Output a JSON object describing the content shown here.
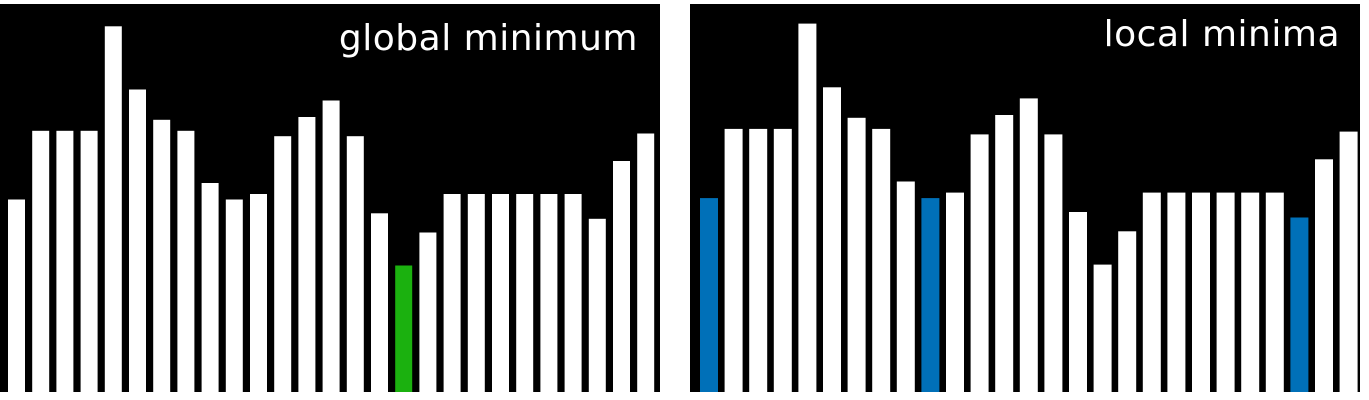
{
  "chart_data": [
    {
      "type": "bar",
      "title": "global minimum",
      "values": [
        7.0,
        9.5,
        9.5,
        9.5,
        13.3,
        11.0,
        9.9,
        9.5,
        7.6,
        7.0,
        7.2,
        9.3,
        10.0,
        10.6,
        9.3,
        6.5,
        4.6,
        5.8,
        7.2,
        7.2,
        7.2,
        7.2,
        7.2,
        7.2,
        6.3,
        8.4,
        9.4
      ],
      "ylim": [
        0,
        14
      ],
      "grid": false,
      "highlight": [
        {
          "index": 16,
          "color": "#1bb10f"
        }
      ]
    },
    {
      "type": "bar",
      "title": "local minima",
      "values": [
        7.0,
        9.5,
        9.5,
        9.5,
        13.3,
        11.0,
        9.9,
        9.5,
        7.6,
        7.0,
        7.2,
        9.3,
        10.0,
        10.6,
        9.3,
        6.5,
        4.6,
        5.8,
        7.2,
        7.2,
        7.2,
        7.2,
        7.2,
        7.2,
        6.3,
        8.4,
        9.4
      ],
      "ylim": [
        0,
        14
      ],
      "grid": false,
      "highlight": [
        {
          "index": 0,
          "color": "#0070b8"
        },
        {
          "index": 9,
          "color": "#0070b8"
        },
        {
          "index": 24,
          "color": "#0070b8"
        }
      ]
    }
  ],
  "colors": {
    "background": "#000000",
    "bar": "#ffffff"
  }
}
